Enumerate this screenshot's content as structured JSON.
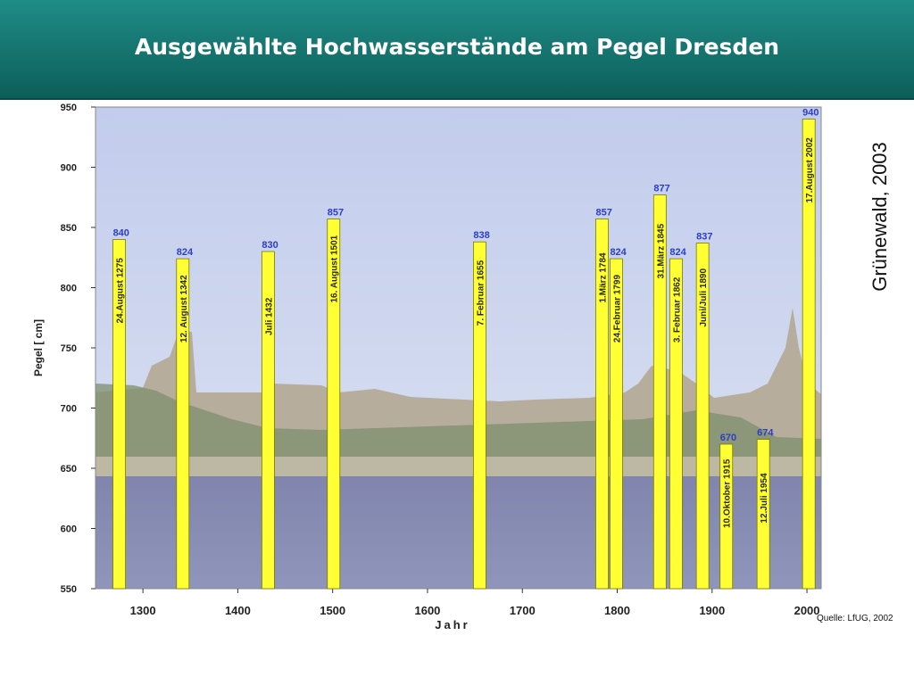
{
  "title": "Ausgewählte Hochwasserstände am Pegel Dresden",
  "author_note": "Grünewald, 2003",
  "source_note": "Quelle: LfUG, 2002",
  "colors": {
    "bar": "#ffff33",
    "bar_stroke": "#7a7a00",
    "value_label": "#2c3ec8",
    "header": "#137671"
  },
  "chart_data": {
    "type": "bar",
    "xlabel": "Jahr",
    "ylabel": "Pegel  [ cm]",
    "xlim": [
      1250,
      2015
    ],
    "ylim": [
      550,
      950
    ],
    "x_ticks": [
      1300,
      1400,
      1500,
      1600,
      1700,
      1800,
      1900,
      2000
    ],
    "y_ticks": [
      550,
      600,
      650,
      700,
      750,
      800,
      850,
      900,
      950
    ],
    "grid": false,
    "background": "photo of Dresden skyline at flood (Elbe)",
    "bars": [
      {
        "year": 1275,
        "value": 840,
        "value_label": "840",
        "date": "24.August 1275"
      },
      {
        "year": 1342,
        "value": 824,
        "value_label": "824",
        "date": "12. August 1342"
      },
      {
        "year": 1432,
        "value": 830,
        "value_label": "830",
        "date": "Juli 1432"
      },
      {
        "year": 1501,
        "value": 857,
        "value_label": "857",
        "date": "16. August 1501"
      },
      {
        "year": 1655,
        "value": 838,
        "value_label": "838",
        "date": "7. Februar 1655"
      },
      {
        "year": 1784,
        "value": 857,
        "value_label": "857",
        "date": "1.März 1784"
      },
      {
        "year": 1799,
        "value": 824,
        "value_label": "824",
        "date": "24.Februar 1799"
      },
      {
        "year": 1845,
        "value": 877,
        "value_label": "877",
        "date": "31.März 1845"
      },
      {
        "year": 1862,
        "value": 824,
        "value_label": "824",
        "date": "3. Februar 1862"
      },
      {
        "year": 1890,
        "value": 837,
        "value_label": "837",
        "date": "Juni/Juli 1890"
      },
      {
        "year": 1915,
        "value": 670,
        "value_label": "670",
        "date": "10.Oktober 1915"
      },
      {
        "year": 1954,
        "value": 674,
        "value_label": "674",
        "date": "12.Juli 1954"
      },
      {
        "year": 2002,
        "value": 940,
        "value_label": "940",
        "date": "17.August 2002"
      }
    ]
  }
}
